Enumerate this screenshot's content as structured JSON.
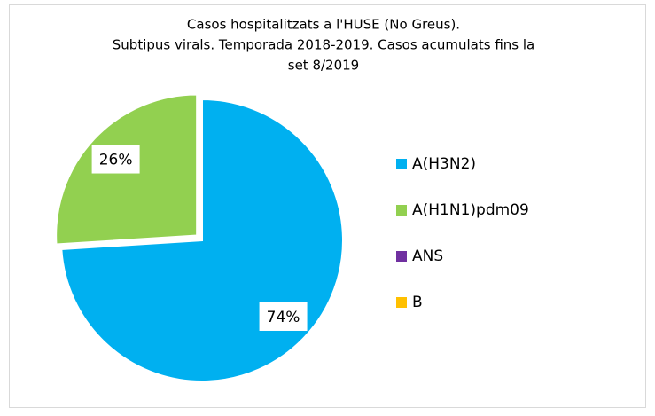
{
  "chart_data": {
    "type": "pie",
    "title": [
      "Casos hospitalitzats a l'HUSE (No Greus).",
      "Subtipus virals.  Temporada 2018-2019. Casos acumulats fins la",
      "set 8/2019"
    ],
    "categories": [
      "A(H3N2)",
      "A(H1N1)pdm09",
      "ANS",
      "B"
    ],
    "values": [
      74,
      26,
      0,
      0
    ],
    "value_labels": [
      "74%",
      "26%",
      null,
      null
    ],
    "colors": [
      "#00b0f0",
      "#92d050",
      "#7030a0",
      "#ffc000"
    ],
    "exploded": [
      false,
      true,
      false,
      false
    ],
    "legend": "right"
  }
}
